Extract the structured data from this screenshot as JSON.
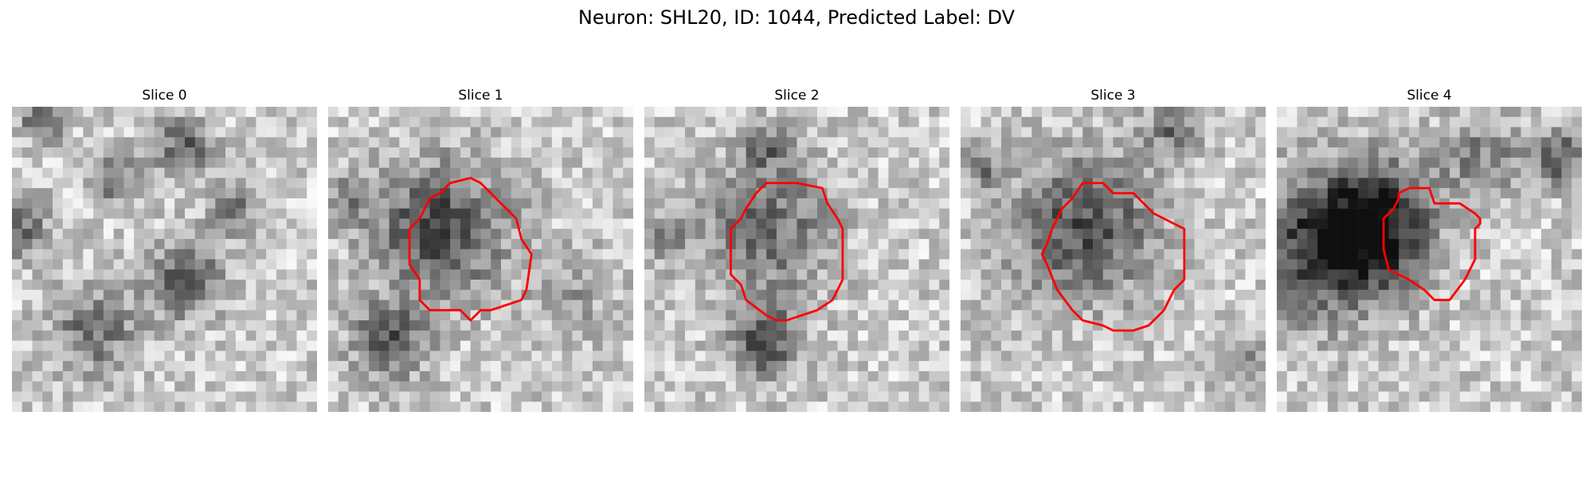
{
  "figure": {
    "title": "Neuron: SHL20, ID: 1044, Predicted Label: DV",
    "outline_color": "#ff0000",
    "colormap": "gray"
  },
  "panels": [
    {
      "label": "Slice 0",
      "roi": false
    },
    {
      "label": "Slice 1",
      "roi": true
    },
    {
      "label": "Slice 2",
      "roi": true
    },
    {
      "label": "Slice 3",
      "roi": true
    },
    {
      "label": "Slice 4",
      "roi": true
    }
  ]
}
